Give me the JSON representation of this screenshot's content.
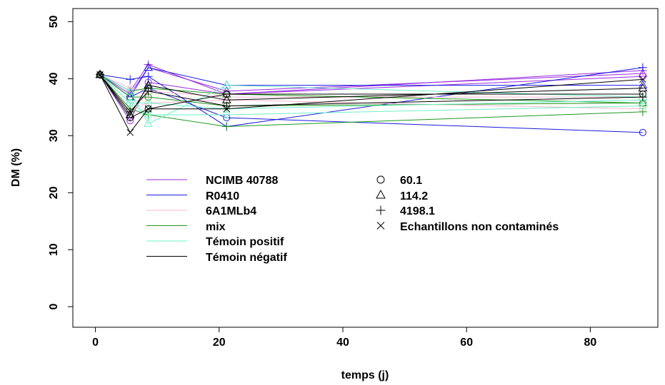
{
  "chart_data": {
    "type": "line",
    "xlabel": "temps (j)",
    "ylabel": "DM (%)",
    "xlim": [
      -4.5,
      92.5
    ],
    "ylim": [
      -2,
      52
    ],
    "x_ticks": [
      "0",
      "20",
      "40",
      "60",
      "80"
    ],
    "y_ticks": [
      "0",
      "10",
      "20",
      "30",
      "40",
      "50"
    ],
    "x": [
      0,
      5,
      8,
      21,
      90
    ],
    "groups": [
      {
        "name": "NCIMB 40788",
        "color": "#9a2be2"
      },
      {
        "name": "R0410",
        "color": "#1a1adf"
      },
      {
        "name": "6A1MLb4",
        "color": "#f4b6cc"
      },
      {
        "name": "mix",
        "color": "#1e9a1e"
      },
      {
        "name": "Témoin positif",
        "color": "#6ef0c8"
      },
      {
        "name": "Témoin négatif",
        "color": "#000000"
      }
    ],
    "markers": [
      {
        "name": "60.1",
        "symbol": "circle"
      },
      {
        "name": "114.2",
        "symbol": "triangle"
      },
      {
        "name": "4198.1",
        "symbol": "plus"
      },
      {
        "name": "Echantillons non contaminés",
        "symbol": "cross"
      }
    ],
    "series": [
      {
        "group": 0,
        "marker": 0,
        "values": [
          40.8,
          33.0,
          39.5,
          37.5,
          40.5
        ]
      },
      {
        "group": 0,
        "marker": 1,
        "values": [
          40.8,
          37.5,
          42.0,
          38.0,
          41.0
        ]
      },
      {
        "group": 0,
        "marker": 2,
        "values": [
          40.8,
          38.0,
          42.5,
          37.5,
          41.5
        ]
      },
      {
        "group": 1,
        "marker": 0,
        "values": [
          40.8,
          37.0,
          38.5,
          33.5,
          31.0
        ]
      },
      {
        "group": 1,
        "marker": 1,
        "values": [
          40.8,
          37.0,
          42.0,
          39.0,
          39.0
        ]
      },
      {
        "group": 1,
        "marker": 2,
        "values": [
          40.8,
          40.0,
          40.5,
          32.0,
          42.0
        ]
      },
      {
        "group": 2,
        "marker": 0,
        "values": [
          40.8,
          35.0,
          36.0,
          36.5,
          35.0
        ]
      },
      {
        "group": 2,
        "marker": 1,
        "values": [
          40.8,
          38.5,
          38.0,
          37.0,
          37.0
        ]
      },
      {
        "group": 2,
        "marker": 2,
        "values": [
          40.8,
          36.0,
          37.0,
          35.5,
          36.0
        ]
      },
      {
        "group": 3,
        "marker": 0,
        "values": [
          40.8,
          37.0,
          37.0,
          35.5,
          36.0
        ]
      },
      {
        "group": 3,
        "marker": 1,
        "values": [
          40.8,
          38.0,
          38.5,
          37.5,
          36.0
        ]
      },
      {
        "group": 3,
        "marker": 2,
        "values": [
          40.8,
          35.0,
          34.0,
          32.0,
          34.5
        ]
      },
      {
        "group": 4,
        "marker": 0,
        "values": [
          40.8,
          36.0,
          34.0,
          34.0,
          35.5
        ]
      },
      {
        "group": 4,
        "marker": 1,
        "values": [
          40.8,
          38.0,
          32.5,
          39.0,
          37.0
        ]
      },
      {
        "group": 4,
        "marker": 2,
        "values": [
          40.8,
          36.0,
          36.0,
          35.0,
          36.5
        ]
      },
      {
        "group": 5,
        "marker": 0,
        "values": [
          40.8,
          33.5,
          35.0,
          37.5,
          37.5
        ]
      },
      {
        "group": 5,
        "marker": 1,
        "values": [
          40.8,
          34.0,
          39.0,
          36.5,
          38.5
        ]
      },
      {
        "group": 5,
        "marker": 2,
        "values": [
          40.8,
          34.5,
          38.0,
          35.5,
          37.0
        ]
      },
      {
        "group": 5,
        "marker": 3,
        "values": [
          40.8,
          31.0,
          35.0,
          35.0,
          40.0
        ]
      }
    ]
  }
}
